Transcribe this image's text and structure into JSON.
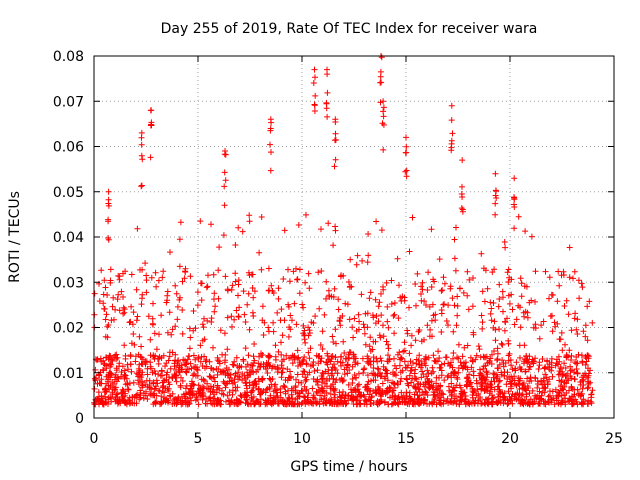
{
  "chart_data": {
    "type": "scatter",
    "title": "Day 255 of 2019, Rate Of TEC Index for receiver wara",
    "xlabel": "GPS time / hours",
    "ylabel": "ROTI / TECUs",
    "xlim": [
      0,
      25
    ],
    "ylim": [
      0,
      0.08
    ],
    "xticks": [
      0,
      5,
      10,
      15,
      20,
      25
    ],
    "xtick_labels": [
      "0",
      "5",
      "10",
      "15",
      "20",
      "25"
    ],
    "yticks": [
      0,
      0.01,
      0.02,
      0.03,
      0.04,
      0.05,
      0.06,
      0.07,
      0.08
    ],
    "ytick_labels": [
      "0",
      "0.01",
      "0.02",
      "0.03",
      "0.04",
      "0.05",
      "0.06",
      "0.07",
      "0.08"
    ],
    "grid": true,
    "marker": "plus",
    "color": "#ff0000",
    "series": [
      {
        "name": "ROTI",
        "x_range_hours": [
          0,
          24
        ],
        "typical_range": [
          0.003,
          0.025
        ],
        "notable_points": [
          {
            "x": 0.7,
            "y": 0.05
          },
          {
            "x": 2.3,
            "y": 0.063
          },
          {
            "x": 2.75,
            "y": 0.068
          },
          {
            "x": 6.3,
            "y": 0.059
          },
          {
            "x": 8.5,
            "y": 0.066
          },
          {
            "x": 10.6,
            "y": 0.077
          },
          {
            "x": 11.2,
            "y": 0.077
          },
          {
            "x": 11.6,
            "y": 0.066
          },
          {
            "x": 13.8,
            "y": 0.08
          },
          {
            "x": 13.9,
            "y": 0.07
          },
          {
            "x": 15.0,
            "y": 0.062
          },
          {
            "x": 17.2,
            "y": 0.069
          },
          {
            "x": 17.7,
            "y": 0.057
          },
          {
            "x": 19.3,
            "y": 0.054
          },
          {
            "x": 20.2,
            "y": 0.053
          }
        ]
      }
    ]
  }
}
